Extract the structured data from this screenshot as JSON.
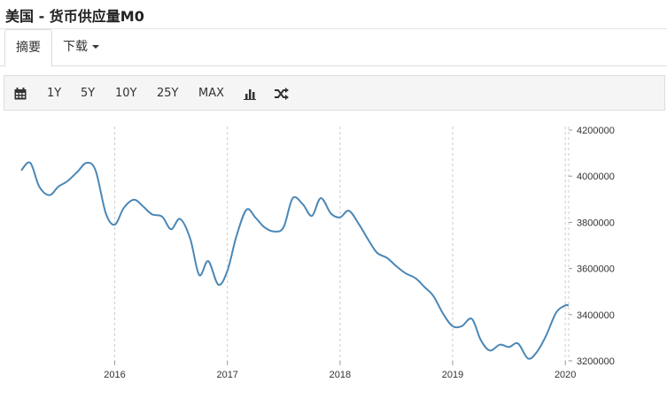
{
  "page": {
    "title": "美国 - 货币供应量M0"
  },
  "tabs": {
    "summary": "摘要",
    "download": "下载"
  },
  "toolbar": {
    "calendar_icon": "calendar-icon",
    "ranges": [
      "1Y",
      "5Y",
      "10Y",
      "25Y",
      "MAX"
    ],
    "chart_type_icon": "bar-chart-icon",
    "compare_icon": "shuffle-icon"
  },
  "colors": {
    "line": "#4a87b6",
    "grid": "#cccccc"
  },
  "chart_data": {
    "type": "line",
    "title": "",
    "xlabel": "",
    "ylabel": "",
    "xlim": [
      2015.17,
      2020.03
    ],
    "ylim": [
      3200000,
      4200000
    ],
    "grid": "vertical dashed at year ticks, right axis dashed",
    "x_ticks": [
      2016,
      2017,
      2018,
      2019,
      2020
    ],
    "y_ticks": [
      3200000,
      3400000,
      3600000,
      3800000,
      4000000,
      4200000
    ],
    "y_axis_position": "right",
    "series": [
      {
        "points": [
          [
            2015.17,
            4025000
          ],
          [
            2015.25,
            4058000
          ],
          [
            2015.33,
            3955000
          ],
          [
            2015.42,
            3918000
          ],
          [
            2015.5,
            3955000
          ],
          [
            2015.58,
            3978000
          ],
          [
            2015.67,
            4020000
          ],
          [
            2015.75,
            4058000
          ],
          [
            2015.83,
            4025000
          ],
          [
            2015.92,
            3840000
          ],
          [
            2016.0,
            3790000
          ],
          [
            2016.08,
            3862000
          ],
          [
            2016.17,
            3898000
          ],
          [
            2016.25,
            3870000
          ],
          [
            2016.33,
            3835000
          ],
          [
            2016.42,
            3825000
          ],
          [
            2016.5,
            3770000
          ],
          [
            2016.58,
            3815000
          ],
          [
            2016.67,
            3730000
          ],
          [
            2016.75,
            3572000
          ],
          [
            2016.83,
            3632000
          ],
          [
            2016.92,
            3530000
          ],
          [
            2017.0,
            3590000
          ],
          [
            2017.08,
            3740000
          ],
          [
            2017.17,
            3855000
          ],
          [
            2017.25,
            3820000
          ],
          [
            2017.33,
            3778000
          ],
          [
            2017.42,
            3760000
          ],
          [
            2017.5,
            3780000
          ],
          [
            2017.58,
            3905000
          ],
          [
            2017.67,
            3878000
          ],
          [
            2017.75,
            3828000
          ],
          [
            2017.83,
            3905000
          ],
          [
            2017.92,
            3838000
          ],
          [
            2018.0,
            3822000
          ],
          [
            2018.08,
            3850000
          ],
          [
            2018.17,
            3790000
          ],
          [
            2018.25,
            3725000
          ],
          [
            2018.33,
            3668000
          ],
          [
            2018.42,
            3645000
          ],
          [
            2018.5,
            3610000
          ],
          [
            2018.58,
            3580000
          ],
          [
            2018.67,
            3558000
          ],
          [
            2018.75,
            3520000
          ],
          [
            2018.83,
            3480000
          ],
          [
            2018.92,
            3400000
          ],
          [
            2019.0,
            3350000
          ],
          [
            2019.08,
            3350000
          ],
          [
            2019.17,
            3382000
          ],
          [
            2019.25,
            3290000
          ],
          [
            2019.33,
            3245000
          ],
          [
            2019.42,
            3270000
          ],
          [
            2019.5,
            3260000
          ],
          [
            2019.58,
            3275000
          ],
          [
            2019.67,
            3210000
          ],
          [
            2019.75,
            3240000
          ],
          [
            2019.83,
            3310000
          ],
          [
            2019.92,
            3410000
          ],
          [
            2020.0,
            3440000
          ],
          [
            2020.03,
            3440000
          ]
        ]
      }
    ]
  }
}
